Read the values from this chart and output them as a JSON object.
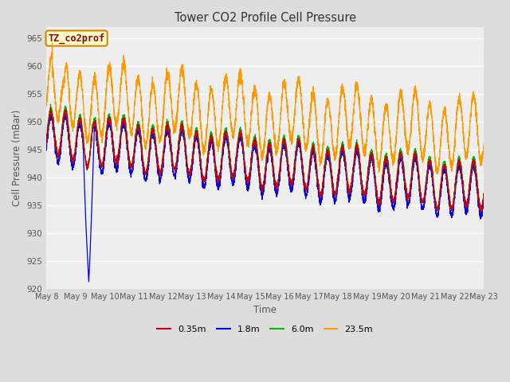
{
  "title": "Tower CO2 Profile Cell Pressure",
  "xlabel": "Time",
  "ylabel": "Cell Pressure (mBar)",
  "ylim": [
    920,
    967
  ],
  "yticks": [
    920,
    925,
    930,
    935,
    940,
    945,
    950,
    955,
    960,
    965
  ],
  "legend_labels": [
    "0.35m",
    "1.8m",
    "6.0m",
    "23.5m"
  ],
  "legend_colors": [
    "#cc0000",
    "#0000ee",
    "#00bb00",
    "#ff9900"
  ],
  "annotation_text": "TZ_co2prof",
  "annotation_box_color": "#ffffcc",
  "annotation_border_color": "#cc8800",
  "annotation_text_color": "#990000",
  "bg_color": "#dddddd",
  "plot_bg_color": "#eeeeee",
  "grid_color": "#ffffff",
  "n_points": 4320,
  "start_day": 8,
  "end_day": 23,
  "base_low": 947.5,
  "base_orange": 954.5,
  "drift_low": -9.5,
  "drift_orange": -7.0,
  "spike_day": 9.45,
  "spike_value": 921.3,
  "orange_peak_day": 8.2,
  "orange_peak_value": 963.5
}
